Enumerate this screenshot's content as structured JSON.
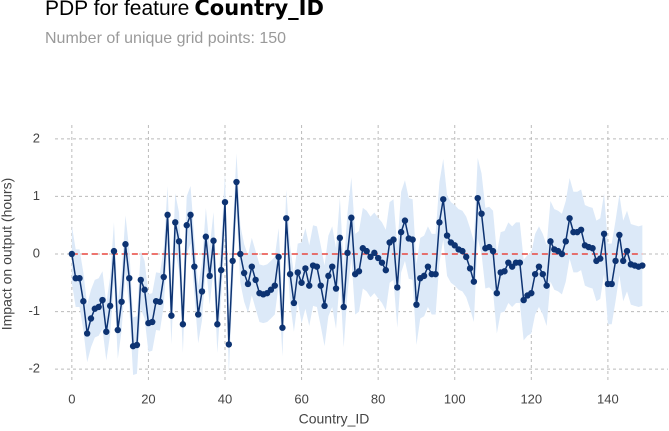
{
  "chart_data": {
    "type": "line",
    "title_prefix": "PDP for feature",
    "title_feature": "Country_ID",
    "subtitle": "Number of unique grid points: 150",
    "x_label": "Country_ID",
    "y_label": "Impact on output (hours)",
    "color": "#0d3372",
    "band_color": "#dce9f8",
    "reference_value": 0,
    "reference_color": "#e8473f",
    "grid": true,
    "xlim": [
      -4.4,
      155.7
    ],
    "ylim": [
      -2.24,
      2.24
    ],
    "xticks": [
      0,
      20,
      40,
      60,
      80,
      100,
      120,
      140
    ],
    "yticks": [
      -2,
      -1,
      0,
      1,
      2
    ],
    "x": [
      0,
      1,
      2,
      3,
      4,
      5,
      6,
      7,
      8,
      9,
      10,
      11,
      12,
      13,
      14,
      15,
      16,
      17,
      18,
      19,
      20,
      21,
      22,
      23,
      24,
      25,
      26,
      27,
      28,
      29,
      30,
      31,
      32,
      33,
      34,
      35,
      36,
      37,
      38,
      39,
      40,
      41,
      42,
      43,
      44,
      45,
      46,
      47,
      48,
      49,
      50,
      51,
      52,
      53,
      54,
      55,
      56,
      57,
      58,
      59,
      60,
      61,
      62,
      63,
      64,
      65,
      66,
      67,
      68,
      69,
      70,
      71,
      72,
      73,
      74,
      75,
      76,
      77,
      78,
      79,
      80,
      81,
      82,
      83,
      84,
      85,
      86,
      87,
      88,
      89,
      90,
      91,
      92,
      93,
      94,
      95,
      96,
      97,
      98,
      99,
      100,
      101,
      102,
      103,
      104,
      105,
      106,
      107,
      108,
      109,
      110,
      111,
      112,
      113,
      114,
      115,
      116,
      117,
      118,
      119,
      120,
      121,
      122,
      123,
      124,
      125,
      126,
      127,
      128,
      129,
      130,
      131,
      132,
      133,
      134,
      135,
      136,
      137,
      138,
      139,
      140,
      141,
      142,
      143,
      144,
      145,
      146,
      147,
      148,
      149
    ],
    "values": [
      0,
      -0.42,
      -0.42,
      -0.82,
      -1.38,
      -1.12,
      -0.95,
      -0.92,
      -0.8,
      -1.35,
      -0.9,
      0.05,
      -1.32,
      -0.83,
      0.17,
      -0.42,
      -1.6,
      -1.58,
      -0.45,
      -0.62,
      -1.2,
      -1.18,
      -0.82,
      -0.83,
      -0.4,
      0.68,
      -1.07,
      0.55,
      0.22,
      -1.22,
      0.5,
      0.68,
      -0.22,
      -1.05,
      -0.65,
      0.3,
      -0.38,
      0.23,
      -1.22,
      -0.28,
      0.9,
      -1.57,
      -0.12,
      1.25,
      0,
      -0.33,
      -0.52,
      -0.22,
      -0.45,
      -0.68,
      -0.7,
      -0.68,
      -0.62,
      -0.55,
      -0.05,
      -1.28,
      0.62,
      -0.35,
      -0.85,
      -0.32,
      -0.5,
      -0.25,
      -0.55,
      -0.2,
      -0.22,
      -0.55,
      -0.9,
      -0.38,
      -0.22,
      -0.6,
      0.28,
      -0.92,
      0.02,
      0.63,
      -0.35,
      -0.3,
      0.1,
      0.05,
      -0.05,
      0.02,
      -0.07,
      -0.15,
      -0.28,
      0.2,
      0.25,
      -0.58,
      0.38,
      0.58,
      0.27,
      0.25,
      -0.88,
      -0.42,
      -0.38,
      -0.22,
      -0.35,
      -0.35,
      0.55,
      0.95,
      0.32,
      0.2,
      0.15,
      0.08,
      0.05,
      -0.05,
      -0.25,
      -0.48,
      0.97,
      0.7,
      0.1,
      0.12,
      0.05,
      -0.68,
      -0.32,
      -0.3,
      -0.15,
      -0.22,
      -0.15,
      -0.15,
      -0.8,
      -0.72,
      -0.68,
      -0.35,
      -0.22,
      -0.35,
      -0.55,
      0.22,
      0.08,
      0.05,
      0,
      0.22,
      0.62,
      0.38,
      0.38,
      0.42,
      0.15,
      0.12,
      0.1,
      -0.12,
      -0.08,
      0.35,
      -0.52,
      -0.52,
      -0.12,
      0.33,
      -0.12,
      0.05,
      -0.18,
      -0.2,
      -0.22,
      -0.2
    ],
    "band_lower": [
      -0.5,
      -0.92,
      -0.92,
      -1.32,
      -1.88,
      -1.62,
      -1.45,
      -1.42,
      -1.3,
      -1.85,
      -1.4,
      -0.45,
      -1.82,
      -1.33,
      -0.33,
      -0.92,
      -2.1,
      -2.08,
      -0.95,
      -1.12,
      -1.7,
      -1.68,
      -1.32,
      -1.33,
      -0.9,
      0.18,
      -1.57,
      0.05,
      -0.28,
      -1.72,
      0,
      0.18,
      -0.72,
      -1.55,
      -1.15,
      -0.2,
      -0.88,
      -0.27,
      -1.72,
      -0.78,
      0.4,
      -2.07,
      -0.62,
      0.75,
      -0.5,
      -0.83,
      -1.02,
      -0.72,
      -0.95,
      -1.18,
      -1.2,
      -1.18,
      -1.12,
      -1.05,
      -0.55,
      -1.78,
      0.12,
      -0.85,
      -1.35,
      -0.82,
      -1.2,
      -0.95,
      -1.25,
      -0.9,
      -0.92,
      -1.25,
      -1.6,
      -1.08,
      -0.92,
      -1.3,
      -0.42,
      -1.62,
      -0.68,
      -0.07,
      -1.05,
      -1,
      -0.6,
      -0.65,
      -0.75,
      -0.68,
      -0.77,
      -0.85,
      -0.98,
      -0.5,
      -0.45,
      -1.28,
      -0.32,
      -0.12,
      -0.43,
      -0.45,
      -1.58,
      -1.12,
      -1.08,
      -0.92,
      -1.05,
      -1.05,
      -0.15,
      0.25,
      -0.38,
      -0.5,
      -0.55,
      -0.62,
      -0.65,
      -0.75,
      -0.95,
      -1.18,
      0.27,
      0,
      -0.6,
      -0.58,
      -0.65,
      -1.38,
      -1.02,
      -1,
      -0.85,
      -0.92,
      -0.85,
      -0.85,
      -1.5,
      -1.42,
      -1.38,
      -1.05,
      -0.92,
      -1.05,
      -1.25,
      -0.48,
      -0.62,
      -0.65,
      -0.7,
      -0.48,
      -0.08,
      -0.32,
      -0.32,
      -0.28,
      -0.55,
      -0.58,
      -0.6,
      -0.82,
      -0.78,
      -0.35,
      -1.22,
      -1.22,
      -0.82,
      -0.37,
      -0.82,
      -0.65,
      -0.88,
      -0.9,
      -0.92,
      -0.9
    ],
    "band_upper": [
      0.5,
      0.08,
      0.08,
      -0.32,
      -0.88,
      -0.62,
      -0.45,
      -0.42,
      -0.3,
      -0.85,
      -0.4,
      0.55,
      -0.82,
      -0.33,
      0.67,
      0.08,
      -1.1,
      -1.08,
      0.05,
      -0.12,
      -0.7,
      -0.68,
      -0.32,
      -0.33,
      0.1,
      1.18,
      -0.57,
      1.05,
      0.72,
      -0.72,
      1,
      1.18,
      0.28,
      -0.55,
      -0.15,
      0.8,
      0.12,
      0.73,
      -0.72,
      0.22,
      1.4,
      -1.07,
      0.38,
      1.75,
      0.5,
      0.17,
      -0.02,
      0.28,
      0.05,
      -0.18,
      -0.2,
      -0.18,
      -0.12,
      -0.05,
      0.45,
      -0.78,
      1.12,
      0.15,
      -0.35,
      0.18,
      0.2,
      0.45,
      0.15,
      0.5,
      0.48,
      0.15,
      -0.2,
      0.32,
      0.48,
      0.1,
      0.98,
      -0.22,
      0.72,
      1.33,
      0.35,
      0.4,
      0.8,
      0.75,
      0.65,
      0.72,
      0.63,
      0.55,
      0.42,
      0.9,
      0.95,
      0.12,
      1.08,
      1.28,
      0.97,
      0.95,
      -0.18,
      0.28,
      0.32,
      0.48,
      0.35,
      0.35,
      1.25,
      1.65,
      1.02,
      0.9,
      0.85,
      0.78,
      0.75,
      0.65,
      0.45,
      0.22,
      1.67,
      1.4,
      0.8,
      0.82,
      0.75,
      0.02,
      0.38,
      0.4,
      0.55,
      0.48,
      0.55,
      0.55,
      -0.1,
      -0.02,
      0.02,
      0.35,
      0.48,
      0.35,
      0.15,
      0.92,
      0.78,
      0.75,
      0.7,
      0.92,
      1.32,
      1.08,
      1.08,
      1.12,
      0.85,
      0.82,
      0.8,
      0.58,
      0.62,
      1.05,
      0.18,
      0.18,
      0.58,
      1.03,
      0.58,
      0.75,
      0.52,
      0.5,
      0.48,
      0.5
    ]
  }
}
